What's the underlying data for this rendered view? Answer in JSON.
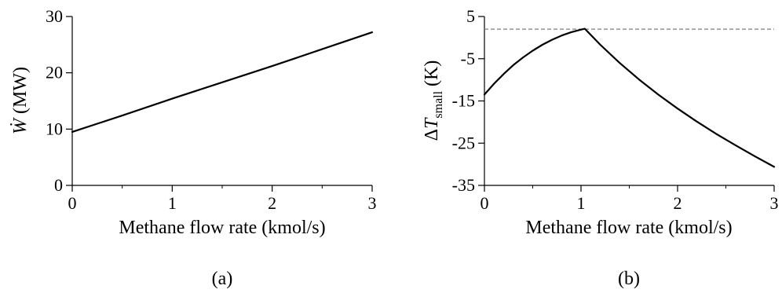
{
  "chart_data": [
    {
      "type": "line",
      "panel_label": "(a)",
      "xlabel": "Methane flow rate (kmol/s)",
      "ylabel": {
        "symbol": "Ẇ",
        "unit": "(MW)"
      },
      "xlim": [
        0,
        3
      ],
      "ylim": [
        0,
        30
      ],
      "x_ticks": [
        0,
        1,
        2,
        3
      ],
      "x_tick_labels": [
        "0",
        "1",
        "2",
        "3"
      ],
      "y_ticks": [
        0,
        10,
        20,
        30
      ],
      "y_tick_labels": [
        "0",
        "10",
        "20",
        "30"
      ],
      "x_minor_step": 0.5,
      "grid": false,
      "series": [
        {
          "x": [
            0,
            0.5,
            1,
            1.5,
            2,
            2.5,
            3
          ],
          "y": [
            9.5,
            12.4,
            15.4,
            18.3,
            21.2,
            24.2,
            27.2
          ],
          "color": "#000000"
        }
      ]
    },
    {
      "type": "line",
      "panel_label": "(b)",
      "xlabel": "Methane flow rate (kmol/s)",
      "ylabel": {
        "prefix": "Δ",
        "symbol": "T",
        "subscript": "small",
        "unit": "(K)"
      },
      "xlim": [
        0,
        3
      ],
      "ylim": [
        -35,
        5
      ],
      "x_ticks": [
        0,
        1,
        2,
        3
      ],
      "x_tick_labels": [
        "0",
        "1",
        "2",
        "3"
      ],
      "y_ticks": [
        -35,
        -25,
        -15,
        -5,
        5
      ],
      "y_tick_labels": [
        "-35",
        "-25",
        "-15",
        "-5",
        "5"
      ],
      "x_minor_step": 0.5,
      "grid": false,
      "reference_line": {
        "y": 2,
        "style": "dashed",
        "color": "#808080"
      },
      "series": [
        {
          "x": [
            0,
            0.1,
            0.2,
            0.3,
            0.4,
            0.5,
            0.6,
            0.7,
            0.8,
            0.9,
            1.0,
            1.04,
            1.2,
            1.4,
            1.6,
            1.8,
            2.0,
            2.2,
            2.4,
            2.6,
            2.8,
            3.0
          ],
          "y": [
            -13.5,
            -10.9,
            -8.6,
            -6.5,
            -4.7,
            -3.1,
            -1.7,
            -0.5,
            0.5,
            1.3,
            1.9,
            2.1,
            -1.7,
            -6.0,
            -9.9,
            -13.5,
            -16.8,
            -19.9,
            -22.8,
            -25.5,
            -28.1,
            -30.6
          ],
          "color": "#000000"
        }
      ]
    }
  ]
}
